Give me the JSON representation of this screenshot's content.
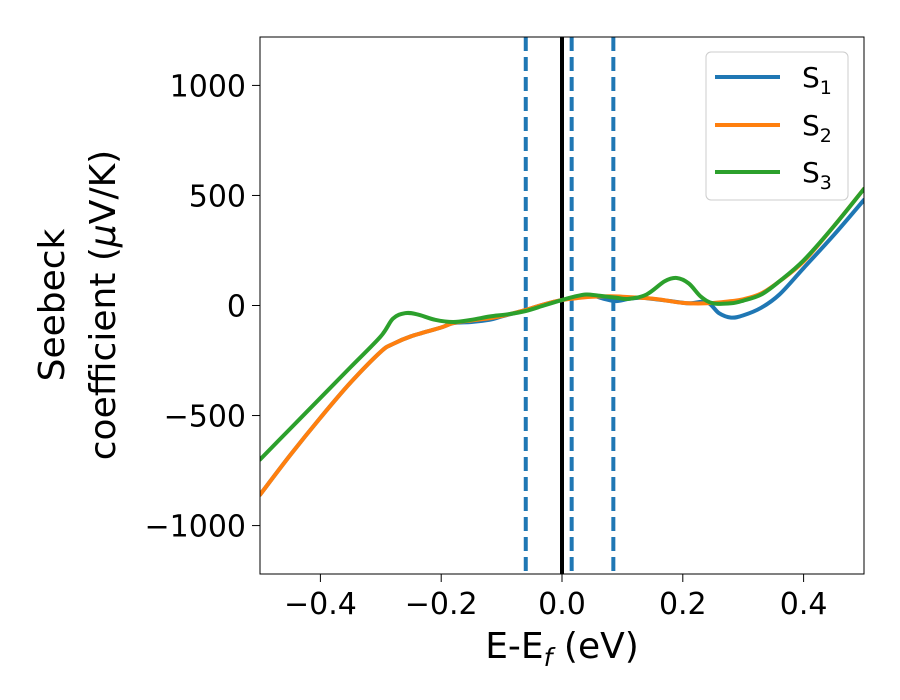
{
  "chart_data": {
    "type": "line",
    "xlabel": "E-E",
    "xlabel_sub": "f",
    "xlabel_unit": " (eV)",
    "ylabel_line1": "Seebeck",
    "ylabel_line2": "coefficient  (",
    "ylabel_mu": "μ",
    "ylabel_unit": "V/K)",
    "xlim": [
      -0.5,
      0.5
    ],
    "ylim": [
      -1220,
      1220
    ],
    "xticks": [
      -0.4,
      -0.2,
      0.0,
      0.2,
      0.4
    ],
    "xtick_labels": [
      "−0.4",
      "−0.2",
      "0.0",
      "0.2",
      "0.4"
    ],
    "yticks": [
      -1000,
      -500,
      0,
      500,
      1000
    ],
    "ytick_labels": [
      "−1000",
      "−500",
      "0",
      "500",
      "1000"
    ],
    "grid": false,
    "legend_placement": "top-right",
    "vertical_lines": [
      {
        "x": -0.06,
        "style": "dashed",
        "color": "#1f77b4"
      },
      {
        "x": 0.0,
        "style": "solid",
        "color": "#000000"
      },
      {
        "x": 0.016,
        "style": "dashed",
        "color": "#1f77b4"
      },
      {
        "x": 0.085,
        "style": "dashed",
        "color": "#1f77b4"
      }
    ],
    "series": [
      {
        "name": "S",
        "sub": "1",
        "color": "#1f77b4",
        "points": [
          [
            -0.5,
            -860
          ],
          [
            -0.45,
            -680
          ],
          [
            -0.4,
            -510
          ],
          [
            -0.35,
            -350
          ],
          [
            -0.3,
            -210
          ],
          [
            -0.28,
            -175
          ],
          [
            -0.25,
            -140
          ],
          [
            -0.2,
            -100
          ],
          [
            -0.18,
            -80
          ],
          [
            -0.15,
            -75
          ],
          [
            -0.12,
            -65
          ],
          [
            -0.1,
            -50
          ],
          [
            -0.06,
            -20
          ],
          [
            -0.03,
            5
          ],
          [
            0.0,
            25
          ],
          [
            0.03,
            40
          ],
          [
            0.05,
            45
          ],
          [
            0.07,
            30
          ],
          [
            0.09,
            20
          ],
          [
            0.11,
            30
          ],
          [
            0.13,
            35
          ],
          [
            0.15,
            30
          ],
          [
            0.18,
            20
          ],
          [
            0.21,
            10
          ],
          [
            0.24,
            15
          ],
          [
            0.26,
            -35
          ],
          [
            0.28,
            -55
          ],
          [
            0.3,
            -45
          ],
          [
            0.33,
            -10
          ],
          [
            0.36,
            50
          ],
          [
            0.4,
            170
          ],
          [
            0.45,
            320
          ],
          [
            0.5,
            480
          ]
        ]
      },
      {
        "name": "S",
        "sub": "2",
        "color": "#ff7f0e",
        "points": [
          [
            -0.5,
            -860
          ],
          [
            -0.45,
            -680
          ],
          [
            -0.4,
            -510
          ],
          [
            -0.35,
            -350
          ],
          [
            -0.3,
            -210
          ],
          [
            -0.28,
            -175
          ],
          [
            -0.25,
            -140
          ],
          [
            -0.2,
            -100
          ],
          [
            -0.18,
            -80
          ],
          [
            -0.15,
            -68
          ],
          [
            -0.12,
            -58
          ],
          [
            -0.1,
            -48
          ],
          [
            -0.06,
            -20
          ],
          [
            -0.03,
            5
          ],
          [
            0.0,
            25
          ],
          [
            0.03,
            35
          ],
          [
            0.05,
            40
          ],
          [
            0.08,
            42
          ],
          [
            0.1,
            40
          ],
          [
            0.13,
            35
          ],
          [
            0.16,
            28
          ],
          [
            0.2,
            12
          ],
          [
            0.24,
            10
          ],
          [
            0.28,
            20
          ],
          [
            0.3,
            28
          ],
          [
            0.33,
            55
          ],
          [
            0.36,
            110
          ],
          [
            0.4,
            200
          ],
          [
            0.45,
            360
          ],
          [
            0.5,
            530
          ]
        ]
      },
      {
        "name": "S",
        "sub": "3",
        "color": "#2ca02c",
        "points": [
          [
            -0.5,
            -700
          ],
          [
            -0.45,
            -560
          ],
          [
            -0.4,
            -420
          ],
          [
            -0.35,
            -280
          ],
          [
            -0.3,
            -140
          ],
          [
            -0.28,
            -60
          ],
          [
            -0.26,
            -35
          ],
          [
            -0.24,
            -40
          ],
          [
            -0.21,
            -65
          ],
          [
            -0.18,
            -75
          ],
          [
            -0.15,
            -65
          ],
          [
            -0.12,
            -50
          ],
          [
            -0.09,
            -40
          ],
          [
            -0.06,
            -25
          ],
          [
            -0.03,
            0
          ],
          [
            0.0,
            25
          ],
          [
            0.02,
            40
          ],
          [
            0.04,
            50
          ],
          [
            0.06,
            45
          ],
          [
            0.09,
            35
          ],
          [
            0.11,
            30
          ],
          [
            0.14,
            50
          ],
          [
            0.17,
            110
          ],
          [
            0.19,
            125
          ],
          [
            0.21,
            100
          ],
          [
            0.23,
            40
          ],
          [
            0.25,
            10
          ],
          [
            0.28,
            10
          ],
          [
            0.3,
            22
          ],
          [
            0.33,
            50
          ],
          [
            0.36,
            110
          ],
          [
            0.4,
            205
          ],
          [
            0.45,
            360
          ],
          [
            0.5,
            530
          ]
        ]
      }
    ]
  }
}
